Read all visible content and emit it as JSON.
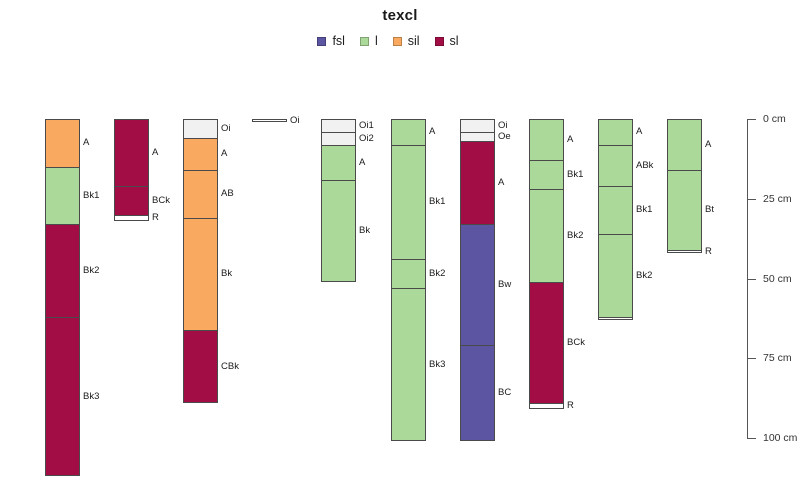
{
  "title": "texcl",
  "legend": {
    "items": [
      {
        "label": "fsl",
        "color": "#5C55A2"
      },
      {
        "label": "l",
        "color": "#ABD99A"
      },
      {
        "label": "sil",
        "color": "#FAAA60"
      },
      {
        "label": "sl",
        "color": "#A30D45"
      }
    ]
  },
  "depth_axis": {
    "unit": "cm",
    "ticks": [
      {
        "cm": 0,
        "label": "0 cm"
      },
      {
        "cm": 25,
        "label": "25 cm"
      },
      {
        "cm": 50,
        "label": "50 cm"
      },
      {
        "cm": 75,
        "label": "75 cm"
      },
      {
        "cm": 100,
        "label": "100 cm"
      }
    ]
  },
  "chart_data": {
    "type": "bar",
    "variant": "soil-profile-depth-columns",
    "title": "texcl",
    "legend_entries": [
      "fsl",
      "l",
      "sil",
      "sl"
    ],
    "palette": {
      "fsl": "#5C55A2",
      "l": "#ABD99A",
      "sil": "#FAAA60",
      "sl": "#A30D45",
      "organic": "#F1F1F1",
      "rock": "#FFFFFF"
    },
    "depth_ticks_cm": [
      0,
      25,
      50,
      75,
      100
    ],
    "depth_unit": "cm",
    "profiles": [
      {
        "horizons": [
          {
            "name": "A",
            "top_cm": 0,
            "bottom_cm": 15,
            "texcl": "sil"
          },
          {
            "name": "Bk1",
            "top_cm": 15,
            "bottom_cm": 33,
            "texcl": "l"
          },
          {
            "name": "Bk2",
            "top_cm": 33,
            "bottom_cm": 62,
            "texcl": "sl"
          },
          {
            "name": "Bk3",
            "top_cm": 62,
            "bottom_cm": 112,
            "texcl": "sl"
          }
        ]
      },
      {
        "horizons": [
          {
            "name": "A",
            "top_cm": 0,
            "bottom_cm": 21,
            "texcl": "sl"
          },
          {
            "name": "BCk",
            "top_cm": 21,
            "bottom_cm": 30,
            "texcl": "sl"
          },
          {
            "name": "R",
            "top_cm": 30,
            "bottom_cm": 32,
            "texcl": null,
            "fill": "#FFFFFF"
          }
        ]
      },
      {
        "horizons": [
          {
            "name": "Oi",
            "top_cm": 0,
            "bottom_cm": 6,
            "texcl": null,
            "fill": "#F1F1F1"
          },
          {
            "name": "A",
            "top_cm": 6,
            "bottom_cm": 16,
            "texcl": "sil"
          },
          {
            "name": "AB",
            "top_cm": 16,
            "bottom_cm": 31,
            "texcl": "sil"
          },
          {
            "name": "Bk",
            "top_cm": 31,
            "bottom_cm": 66,
            "texcl": "sil"
          },
          {
            "name": "CBk",
            "top_cm": 66,
            "bottom_cm": 89,
            "texcl": "sl"
          }
        ]
      },
      {
        "horizons": [
          {
            "name": "Oi",
            "top_cm": 0,
            "bottom_cm": 1,
            "texcl": null,
            "fill": "#FFFFFF"
          }
        ]
      },
      {
        "horizons": [
          {
            "name": "Oi1",
            "top_cm": 0,
            "bottom_cm": 4,
            "texcl": null,
            "fill": "#F1F1F1"
          },
          {
            "name": "Oi2",
            "top_cm": 4,
            "bottom_cm": 8,
            "texcl": null,
            "fill": "#F1F1F1"
          },
          {
            "name": "A",
            "top_cm": 8,
            "bottom_cm": 19,
            "texcl": "l"
          },
          {
            "name": "Bk",
            "top_cm": 19,
            "bottom_cm": 51,
            "texcl": "l"
          }
        ]
      },
      {
        "horizons": [
          {
            "name": "A",
            "top_cm": 0,
            "bottom_cm": 8,
            "texcl": "l"
          },
          {
            "name": "Bk1",
            "top_cm": 8,
            "bottom_cm": 44,
            "texcl": "l"
          },
          {
            "name": "Bk2",
            "top_cm": 44,
            "bottom_cm": 53,
            "texcl": "l"
          },
          {
            "name": "Bk3",
            "top_cm": 53,
            "bottom_cm": 101,
            "texcl": "l"
          }
        ]
      },
      {
        "horizons": [
          {
            "name": "Oi",
            "top_cm": 0,
            "bottom_cm": 4,
            "texcl": null,
            "fill": "#F1F1F1"
          },
          {
            "name": "Oe",
            "top_cm": 4,
            "bottom_cm": 7,
            "texcl": null,
            "fill": "#F1F1F1"
          },
          {
            "name": "A",
            "top_cm": 7,
            "bottom_cm": 33,
            "texcl": "sl"
          },
          {
            "name": "Bw",
            "top_cm": 33,
            "bottom_cm": 71,
            "texcl": "fsl"
          },
          {
            "name": "BC",
            "top_cm": 71,
            "bottom_cm": 101,
            "texcl": "fsl"
          }
        ]
      },
      {
        "horizons": [
          {
            "name": "A",
            "top_cm": 0,
            "bottom_cm": 13,
            "texcl": "l"
          },
          {
            "name": "Bk1",
            "top_cm": 13,
            "bottom_cm": 22,
            "texcl": "l"
          },
          {
            "name": "Bk2",
            "top_cm": 22,
            "bottom_cm": 51,
            "texcl": "l"
          },
          {
            "name": "BCk",
            "top_cm": 51,
            "bottom_cm": 89,
            "texcl": "sl"
          },
          {
            "name": "R",
            "top_cm": 89,
            "bottom_cm": 91,
            "texcl": null,
            "fill": "#FFFFFF"
          }
        ]
      },
      {
        "horizons": [
          {
            "name": "A",
            "top_cm": 0,
            "bottom_cm": 8,
            "texcl": "l"
          },
          {
            "name": "ABk",
            "top_cm": 8,
            "bottom_cm": 21,
            "texcl": "l"
          },
          {
            "name": "Bk1",
            "top_cm": 21,
            "bottom_cm": 36,
            "texcl": "l"
          },
          {
            "name": "Bk2",
            "top_cm": 36,
            "bottom_cm": 62,
            "texcl": "l"
          },
          {
            "name": "",
            "top_cm": 62,
            "bottom_cm": 63,
            "texcl": null,
            "fill": "#FFFFFF"
          }
        ]
      },
      {
        "horizons": [
          {
            "name": "A",
            "top_cm": 0,
            "bottom_cm": 16,
            "texcl": "l"
          },
          {
            "name": "Bt",
            "top_cm": 16,
            "bottom_cm": 41,
            "texcl": "l"
          },
          {
            "name": "R",
            "top_cm": 41,
            "bottom_cm": 42,
            "texcl": null,
            "fill": "#FFFFFF"
          }
        ]
      }
    ]
  }
}
